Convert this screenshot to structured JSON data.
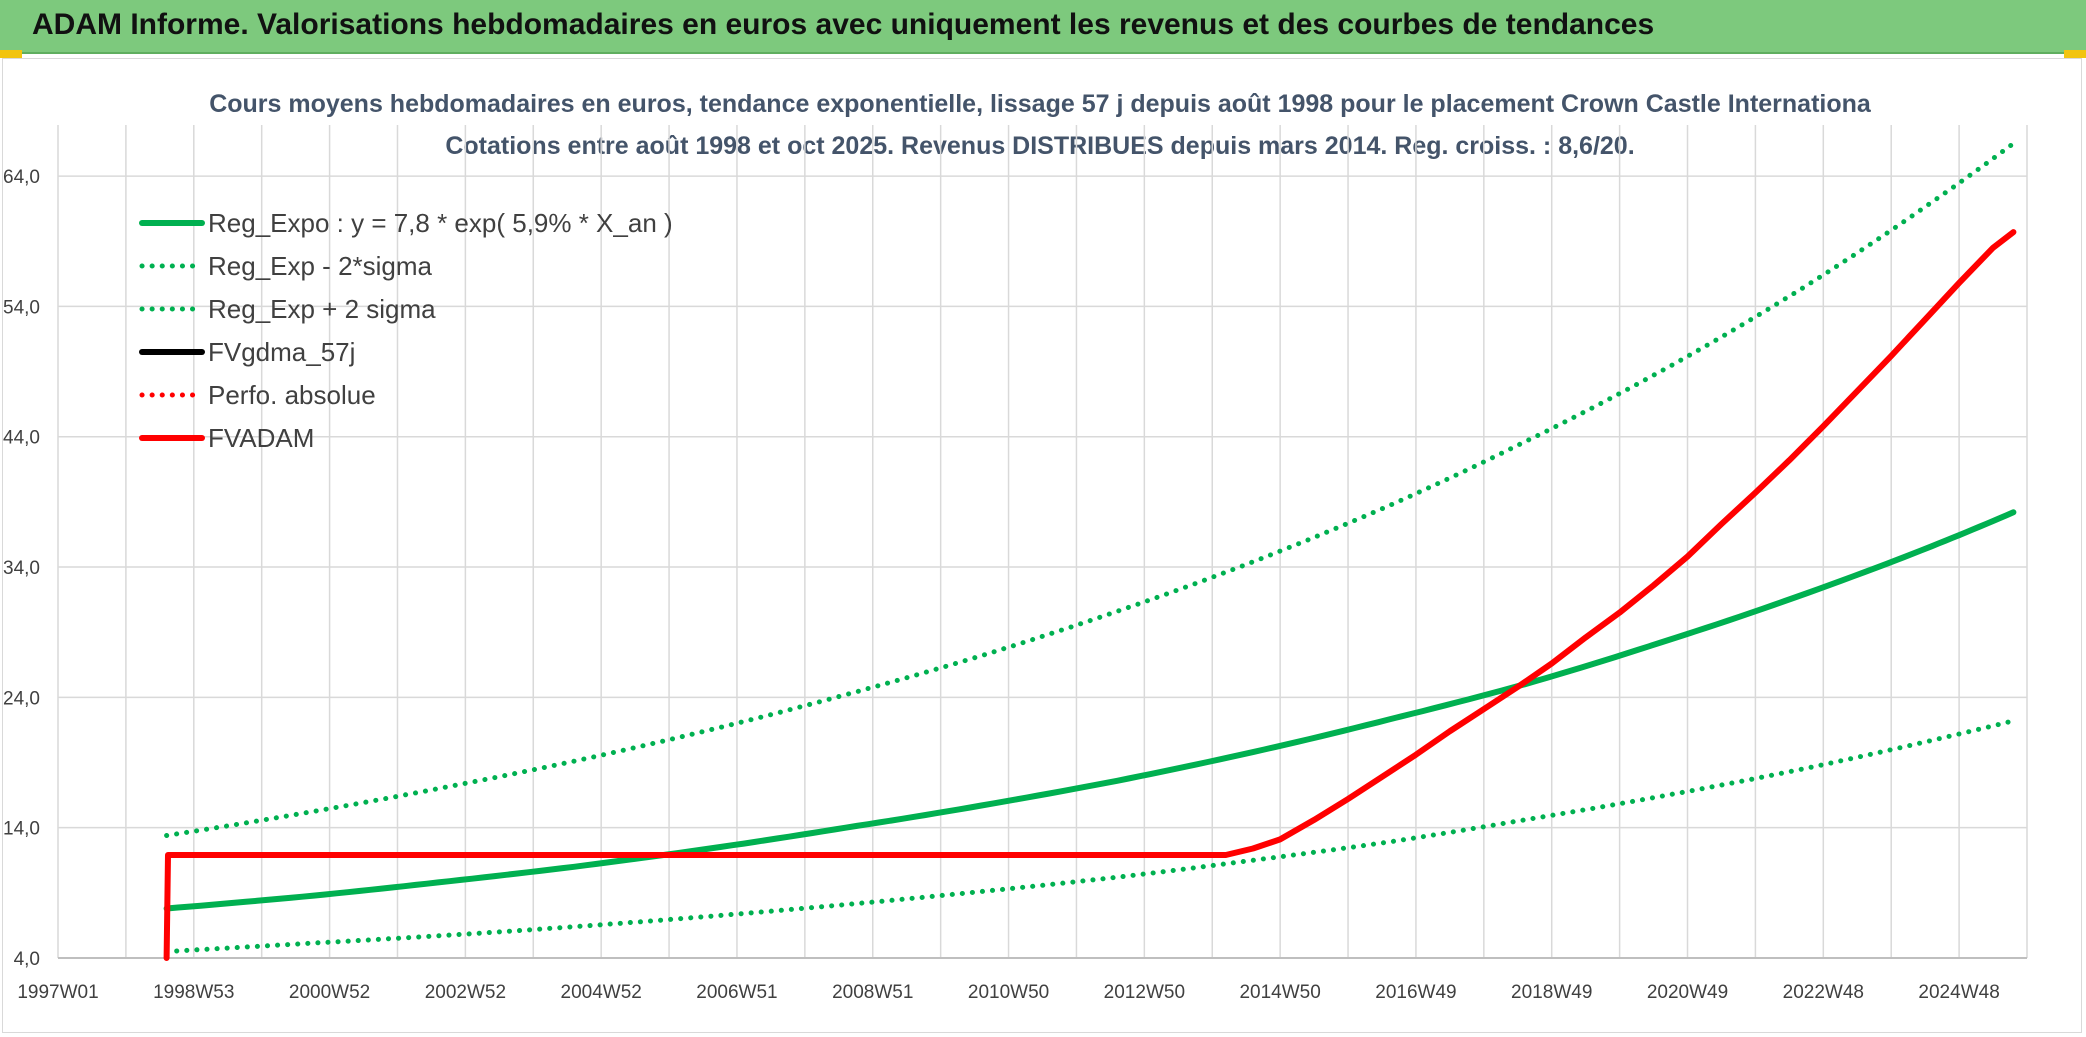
{
  "banner": {
    "title": "ADAM Informe. Valorisations hebdomadaires en euros avec uniquement les revenus et des courbes de tendances"
  },
  "colors": {
    "banner_bg": "#7dc97d",
    "accent_yellow": "#f2c40f",
    "green": "#00b050",
    "red": "#ff0000",
    "black": "#000000",
    "grid": "#d9d9d9",
    "title_text": "#44546a"
  },
  "chart_data": {
    "type": "line",
    "title": "Cours moyens hebdomadaires en euros, tendance exponentielle, lissage 57 j depuis août 1998 pour le placement Crown Castle Internationa",
    "subtitle": "Cotations entre août 1998 et oct 2025. Revenus DISTRIBUES depuis mars 2014. Reg. croiss. : 8,6/20.",
    "xlabel": "",
    "ylabel": "",
    "ylim": [
      4,
      66
    ],
    "yticks": [
      "4,0",
      "14,0",
      "24,0",
      "34,0",
      "44,0",
      "54,0",
      "64,0"
    ],
    "yticks_values": [
      4,
      14,
      24,
      34,
      44,
      54,
      64
    ],
    "xlim": [
      1997.0,
      2026.0
    ],
    "xticks": [
      "1997W01",
      "1998W53",
      "2000W52",
      "2002W52",
      "2004W52",
      "2006W51",
      "2008W51",
      "2010W50",
      "2012W50",
      "2014W50",
      "2016W49",
      "2018W49",
      "2020W49",
      "2022W48",
      "2024W48"
    ],
    "xticks_values": [
      1997.0,
      1999.0,
      2001.0,
      2003.0,
      2005.0,
      2007.0,
      2009.0,
      2011.0,
      2013.0,
      2015.0,
      2017.0,
      2019.0,
      2021.0,
      2023.0,
      2025.0
    ],
    "grid": true,
    "legend_position": "top-left",
    "series": [
      {
        "name": "Reg_Expo : y = 7,8 * exp( 5,9% *  X_an )",
        "color": "#00b050",
        "style": "solid",
        "x": [
          1998.6,
          2000.6,
          2002.6,
          2004.6,
          2006.6,
          2008.6,
          2010.6,
          2012.6,
          2014.6,
          2016.6,
          2018.6,
          2020.6,
          2022.6,
          2024.6,
          2025.8
        ],
        "values": [
          7.8,
          8.7,
          9.8,
          11.0,
          12.4,
          14.0,
          15.7,
          17.6,
          19.8,
          22.3,
          25.0,
          28.2,
          31.7,
          35.6,
          38.2
        ]
      },
      {
        "name": "Reg_Exp - 2*sigma",
        "color": "#00b050",
        "style": "dotted",
        "x": [
          1998.6,
          2000.6,
          2002.6,
          2004.6,
          2006.6,
          2008.6,
          2010.6,
          2012.6,
          2014.6,
          2016.6,
          2018.6,
          2020.6,
          2022.6,
          2024.6,
          2025.8
        ],
        "values": [
          4.5,
          5.1,
          5.7,
          6.4,
          7.2,
          8.1,
          9.1,
          10.2,
          11.5,
          12.9,
          14.6,
          16.4,
          18.4,
          20.7,
          22.2
        ]
      },
      {
        "name": "Reg_Exp + 2 sigma",
        "color": "#00b050",
        "style": "dotted",
        "x": [
          1998.6,
          2000.6,
          2002.6,
          2004.6,
          2006.6,
          2008.6,
          2010.6,
          2012.6,
          2014.6,
          2016.6,
          2018.6,
          2020.6,
          2022.6,
          2024.6,
          2025.8
        ],
        "values": [
          13.4,
          15.1,
          17.0,
          19.1,
          21.5,
          24.2,
          27.2,
          30.6,
          34.4,
          38.7,
          43.6,
          49.0,
          55.1,
          62.0,
          66.5
        ]
      },
      {
        "name": "FVgdma_57j",
        "color": "#000000",
        "style": "solid",
        "x": [],
        "values": []
      },
      {
        "name": "Perfo. absolue",
        "color": "#ff0000",
        "style": "dotted",
        "x": [],
        "values": []
      },
      {
        "name": "FVADAM",
        "color": "#ff0000",
        "style": "solid",
        "x": [
          1998.6,
          1998.62,
          2001.0,
          2005.0,
          2009.0,
          2013.0,
          2014.2,
          2014.6,
          2015.0,
          2015.5,
          2016.0,
          2016.5,
          2017.0,
          2017.5,
          2018.0,
          2018.5,
          2019.0,
          2019.5,
          2020.0,
          2020.5,
          2021.0,
          2021.5,
          2022.0,
          2022.5,
          2023.0,
          2023.5,
          2024.0,
          2024.5,
          2025.0,
          2025.5,
          2025.8
        ],
        "values": [
          4.0,
          11.9,
          11.9,
          11.9,
          11.9,
          11.9,
          11.9,
          12.4,
          13.1,
          14.6,
          16.2,
          17.9,
          19.6,
          21.4,
          23.1,
          24.8,
          26.6,
          28.6,
          30.5,
          32.6,
          34.8,
          37.3,
          39.7,
          42.2,
          44.8,
          47.5,
          50.2,
          53.0,
          55.8,
          58.5,
          59.7
        ]
      }
    ]
  }
}
